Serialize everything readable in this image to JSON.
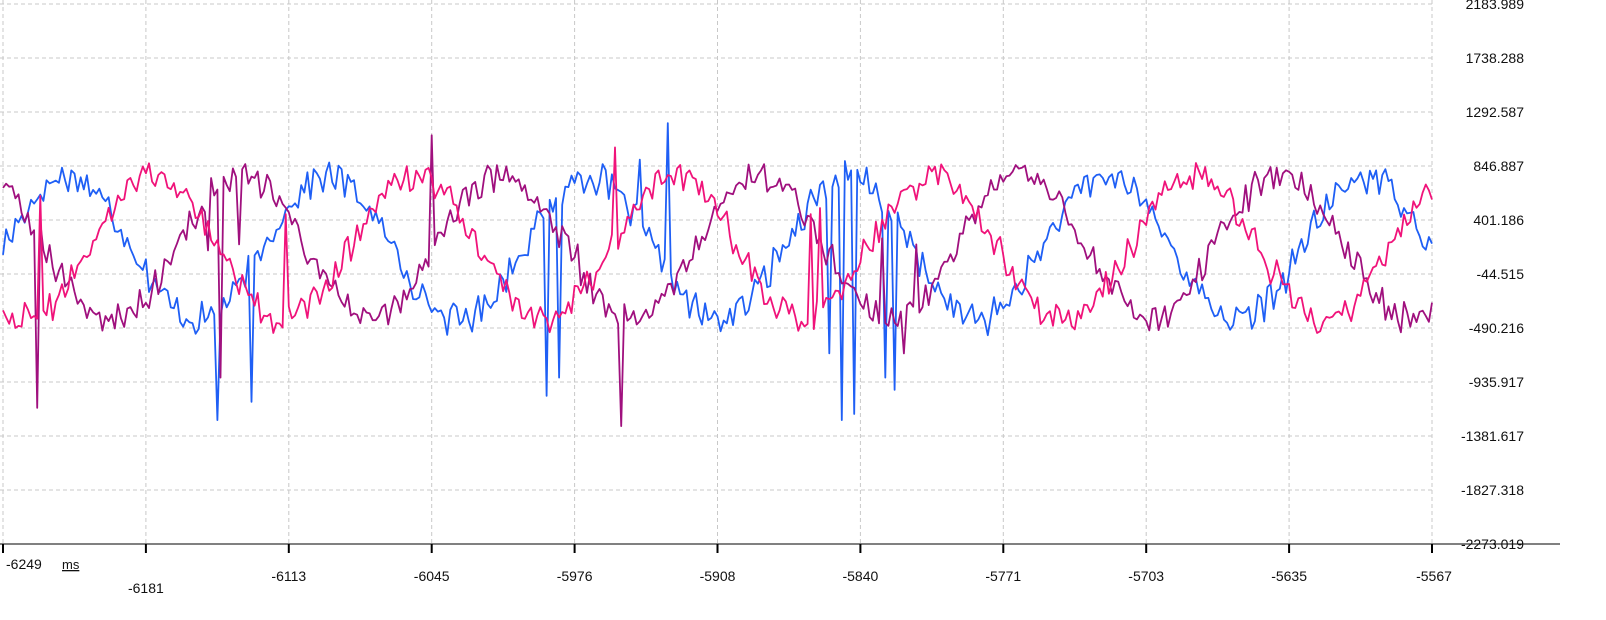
{
  "chart_data": {
    "type": "line",
    "x_unit": "ms",
    "x_ticks": [
      "-6249",
      "-6181",
      "-6113",
      "-6045",
      "-5976",
      "-5908",
      "-5840",
      "-5771",
      "-5703",
      "-5635",
      "-5567"
    ],
    "y_ticks": [
      "2183.989",
      "1738.288",
      "1292.587",
      "846.887",
      "401.186",
      "-44.515",
      "-490.216",
      "-935.917",
      "-1381.617",
      "-1827.318",
      "-2273.019"
    ],
    "xlim": [
      -6249,
      -5567
    ],
    "ylim": [
      -2273.019,
      2183.989
    ],
    "grid": true,
    "series": [
      {
        "color": "#1f5ff5",
        "phase": 0.0,
        "spikes": [
          [
            -6146,
            -1250
          ],
          [
            -6130,
            -1100
          ],
          [
            -5989,
            -1050
          ],
          [
            -5984,
            -900
          ],
          [
            -5848,
            -1250
          ],
          [
            -5843,
            -1200
          ],
          [
            -5932,
            1200
          ],
          [
            -5945,
            900
          ],
          [
            -5828,
            -900
          ],
          [
            -5823,
            -1000
          ],
          [
            -5855,
            -700
          ]
        ]
      },
      {
        "color": "#a0107e",
        "phase": 2.0944,
        "spikes": [
          [
            -6232,
            -1150
          ],
          [
            -6151,
            150
          ],
          [
            -6145,
            -900
          ],
          [
            -6137,
            200
          ],
          [
            -6044,
            1100
          ],
          [
            -5954,
            -1300
          ],
          [
            -5982,
            350
          ],
          [
            -5975,
            200
          ],
          [
            -5829,
            250
          ],
          [
            -5813,
            200
          ],
          [
            -5819,
            -700
          ]
        ]
      },
      {
        "color": "#f0137a",
        "phase": 4.1888,
        "spikes": [
          [
            -6231,
            600
          ],
          [
            -6114,
            450
          ],
          [
            -5957,
            1000
          ],
          [
            -5863,
            450
          ],
          [
            -5859,
            500
          ]
        ]
      }
    ]
  }
}
